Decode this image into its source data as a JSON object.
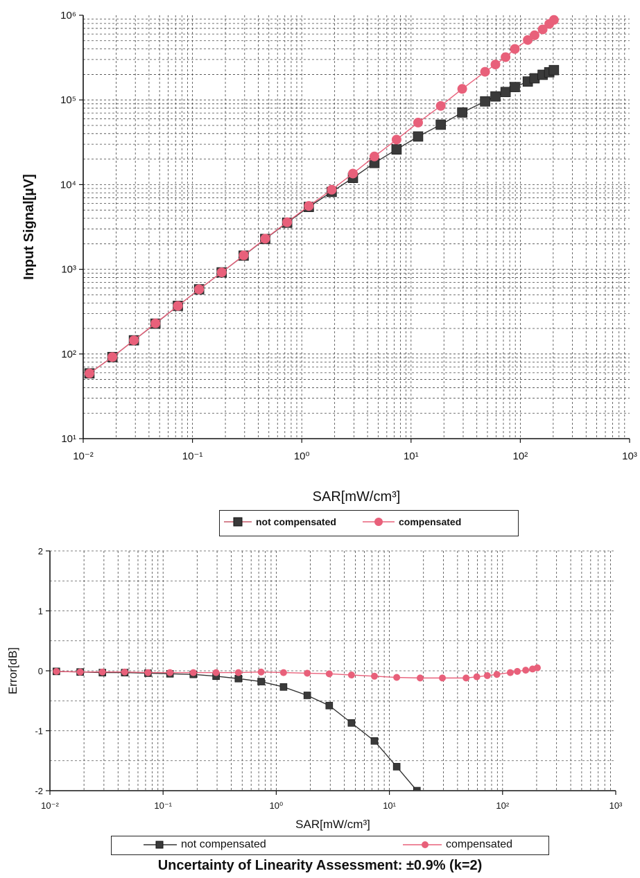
{
  "chart_data": [
    {
      "type": "line",
      "xscale": "log",
      "yscale": "log",
      "xlabel": "SAR[mW/cm³]",
      "ylabel": "Input Signal[µV]",
      "xlim": [
        0.01,
        1000
      ],
      "ylim": [
        10,
        1000000
      ],
      "xticks": [
        "10⁻²",
        "10⁻¹",
        "10⁰",
        "10¹",
        "10²",
        "10³"
      ],
      "yticks": [
        "10¹",
        "10²",
        "10³",
        "10⁴",
        "10⁵",
        "10⁶"
      ],
      "grid": true,
      "legend": "bottom-center",
      "series": [
        {
          "name": "not compensated",
          "color": "#333333",
          "marker": "square",
          "points": [
            [
              0.0114,
              59
            ],
            [
              0.0185,
              92
            ],
            [
              0.0291,
              145
            ],
            [
              0.0458,
              228
            ],
            [
              0.0735,
              370
            ],
            [
              0.115,
              580
            ],
            [
              0.185,
              920
            ],
            [
              0.294,
              1450
            ],
            [
              0.463,
              2280
            ],
            [
              0.735,
              3550
            ],
            [
              1.16,
              5450
            ],
            [
              1.88,
              8200
            ],
            [
              2.94,
              12000
            ],
            [
              4.62,
              18000
            ],
            [
              7.37,
              26000
            ],
            [
              11.6,
              37000
            ],
            [
              18.7,
              51000
            ],
            [
              29.4,
              71000
            ],
            [
              47.6,
              96000
            ],
            [
              59.2,
              110000
            ],
            [
              73.3,
              124000
            ],
            [
              89.1,
              142000
            ],
            [
              117,
              165000
            ],
            [
              135,
              180000
            ],
            [
              160,
              198000
            ],
            [
              184,
              212000
            ],
            [
              203,
              225000
            ]
          ]
        },
        {
          "name": "compensated",
          "color": "#e8607a",
          "marker": "circle",
          "points": [
            [
              0.0114,
              59
            ],
            [
              0.0185,
              92
            ],
            [
              0.0291,
              145
            ],
            [
              0.0458,
              230
            ],
            [
              0.0735,
              370
            ],
            [
              0.115,
              580
            ],
            [
              0.185,
              920
            ],
            [
              0.294,
              1460
            ],
            [
              0.463,
              2300
            ],
            [
              0.735,
              3600
            ],
            [
              1.16,
              5600
            ],
            [
              1.88,
              8700
            ],
            [
              2.94,
              13500
            ],
            [
              4.62,
              21500
            ],
            [
              7.37,
              34000
            ],
            [
              11.6,
              54000
            ],
            [
              18.7,
              85000
            ],
            [
              29.4,
              135000
            ],
            [
              47.6,
              215000
            ],
            [
              59.2,
              262000
            ],
            [
              73.3,
              320000
            ],
            [
              89.1,
              400000
            ],
            [
              117,
              510000
            ],
            [
              135,
              580000
            ],
            [
              160,
              680000
            ],
            [
              184,
              790000
            ],
            [
              203,
              880000
            ]
          ]
        }
      ]
    },
    {
      "type": "line",
      "xscale": "log",
      "xlabel": "SAR[mW/cm³]",
      "ylabel": "Error[dB]",
      "xlim": [
        0.01,
        1000
      ],
      "ylim": [
        -2,
        2
      ],
      "xticks": [
        "10⁻²",
        "10⁻¹",
        "10⁰",
        "10¹",
        "10²",
        "10³"
      ],
      "yticks": [
        "-2",
        "-1",
        "0",
        "1",
        "2"
      ],
      "grid": true,
      "legend": "bottom-center",
      "series": [
        {
          "name": "not compensated",
          "color": "#333333",
          "marker": "square",
          "points": [
            [
              0.0114,
              -0.01
            ],
            [
              0.0185,
              -0.02
            ],
            [
              0.0291,
              -0.03
            ],
            [
              0.0458,
              -0.03
            ],
            [
              0.0735,
              -0.04
            ],
            [
              0.115,
              -0.05
            ],
            [
              0.185,
              -0.06
            ],
            [
              0.294,
              -0.09
            ],
            [
              0.463,
              -0.13
            ],
            [
              0.735,
              -0.18
            ],
            [
              1.16,
              -0.27
            ],
            [
              1.88,
              -0.41
            ],
            [
              2.94,
              -0.58
            ],
            [
              4.62,
              -0.87
            ],
            [
              7.37,
              -1.17
            ],
            [
              11.6,
              -1.6
            ],
            [
              17.5,
              -2.0
            ]
          ]
        },
        {
          "name": "compensated",
          "color": "#e8607a",
          "marker": "circle",
          "points": [
            [
              0.0114,
              -0.01
            ],
            [
              0.0185,
              -0.02
            ],
            [
              0.0291,
              -0.02
            ],
            [
              0.0458,
              -0.02
            ],
            [
              0.0735,
              -0.03
            ],
            [
              0.115,
              -0.03
            ],
            [
              0.185,
              -0.03
            ],
            [
              0.294,
              -0.03
            ],
            [
              0.463,
              -0.03
            ],
            [
              0.735,
              -0.02
            ],
            [
              1.16,
              -0.03
            ],
            [
              1.88,
              -0.04
            ],
            [
              2.94,
              -0.05
            ],
            [
              4.62,
              -0.07
            ],
            [
              7.37,
              -0.09
            ],
            [
              11.6,
              -0.11
            ],
            [
              18.7,
              -0.12
            ],
            [
              29.4,
              -0.12
            ],
            [
              47.6,
              -0.12
            ],
            [
              59.2,
              -0.1
            ],
            [
              73.3,
              -0.08
            ],
            [
              89.1,
              -0.06
            ],
            [
              117,
              -0.03
            ],
            [
              135,
              -0.01
            ],
            [
              160,
              0.01
            ],
            [
              184,
              0.03
            ],
            [
              203,
              0.05
            ]
          ]
        }
      ]
    }
  ],
  "legend_labels": {
    "not_compensated": "not compensated",
    "compensated": "compensated"
  },
  "footer_note": "Uncertainty of Linearity Assessment: ±0.9% (k=2)"
}
